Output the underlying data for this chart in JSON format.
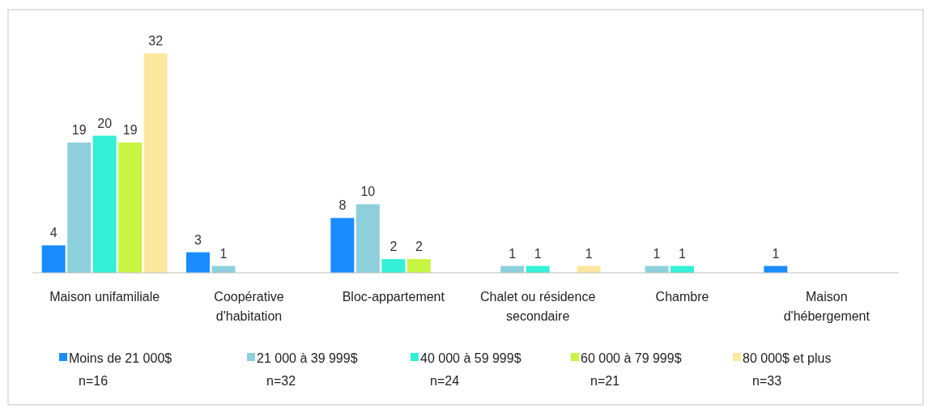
{
  "chart_data": {
    "type": "bar",
    "categories": [
      "Maison unifamiliale",
      "Coopérative d'habitation",
      "Bloc-appartement",
      "Chalet ou résidence secondaire",
      "Chambre",
      "Maison d'hébergement"
    ],
    "series": [
      {
        "name": "Moins de 21 000$ n=16",
        "color": "#1a8cff",
        "values": [
          4,
          3,
          8,
          null,
          null,
          1
        ]
      },
      {
        "name": "21 000 à 39 999$ n=32",
        "color": "#8ecfdc",
        "values": [
          19,
          1,
          10,
          1,
          1,
          null
        ]
      },
      {
        "name": "40 000 à 59 999$ n=24",
        "color": "#33f0d6",
        "values": [
          20,
          null,
          2,
          1,
          1,
          null
        ]
      },
      {
        "name": "60 000 à 79 999$ n=21",
        "color": "#c8f542",
        "values": [
          19,
          null,
          2,
          null,
          null,
          null
        ]
      },
      {
        "name": "80 000$ et plus n=33",
        "color": "#fbe89e",
        "values": [
          32,
          null,
          null,
          1,
          null,
          null
        ]
      }
    ],
    "data_labels": true,
    "legend": "bottom",
    "grid": false
  }
}
